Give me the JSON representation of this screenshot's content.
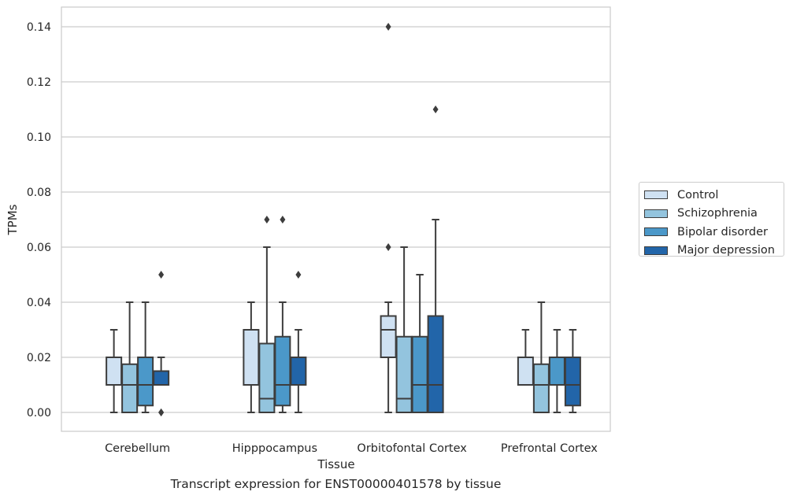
{
  "chart_data": {
    "type": "boxplot",
    "xlabel": "Tissue",
    "ylabel": "TPMs",
    "caption": "Transcript expression for ENST00000401578 by tissue",
    "ylim": [
      -0.007,
      0.147
    ],
    "yticks": [
      "0.00",
      "0.02",
      "0.04",
      "0.06",
      "0.08",
      "0.10",
      "0.12",
      "0.14"
    ],
    "grid": true,
    "legend_placement": "outside-right",
    "categories": [
      "Cerebellum",
      "Hipppocampus",
      "Orbitofontal Cortex",
      "Prefrontal Cortex"
    ],
    "series": [
      {
        "name": "Control",
        "color": "#cfe1f2",
        "boxes": [
          {
            "whislo": 0.0,
            "q1": 0.01,
            "med": 0.01,
            "q3": 0.02,
            "whishi": 0.03,
            "fliers": []
          },
          {
            "whislo": 0.0,
            "q1": 0.01,
            "med": 0.01,
            "q3": 0.03,
            "whishi": 0.04,
            "fliers": []
          },
          {
            "whislo": 0.0,
            "q1": 0.02,
            "med": 0.03,
            "q3": 0.035,
            "whishi": 0.04,
            "fliers": [
              0.06,
              0.14
            ]
          },
          {
            "whislo": 0.01,
            "q1": 0.01,
            "med": 0.01,
            "q3": 0.02,
            "whishi": 0.03,
            "fliers": []
          }
        ]
      },
      {
        "name": "Schizophrenia",
        "color": "#93c4de",
        "boxes": [
          {
            "whislo": 0.0,
            "q1": 0.0,
            "med": 0.01,
            "q3": 0.0175,
            "whishi": 0.04,
            "fliers": []
          },
          {
            "whislo": 0.0,
            "q1": 0.0,
            "med": 0.005,
            "q3": 0.025,
            "whishi": 0.06,
            "fliers": [
              0.07
            ]
          },
          {
            "whislo": 0.0,
            "q1": 0.0,
            "med": 0.005,
            "q3": 0.0275,
            "whishi": 0.06,
            "fliers": []
          },
          {
            "whislo": 0.0,
            "q1": 0.0,
            "med": 0.01,
            "q3": 0.0175,
            "whishi": 0.04,
            "fliers": []
          }
        ]
      },
      {
        "name": "Bipolar disorder",
        "color": "#4b98c9",
        "boxes": [
          {
            "whislo": 0.0,
            "q1": 0.0025,
            "med": 0.01,
            "q3": 0.02,
            "whishi": 0.04,
            "fliers": []
          },
          {
            "whislo": 0.0,
            "q1": 0.0025,
            "med": 0.01,
            "q3": 0.0275,
            "whishi": 0.04,
            "fliers": [
              0.07
            ]
          },
          {
            "whislo": 0.0,
            "q1": 0.0,
            "med": 0.01,
            "q3": 0.0275,
            "whishi": 0.05,
            "fliers": []
          },
          {
            "whislo": 0.0,
            "q1": 0.01,
            "med": 0.01,
            "q3": 0.02,
            "whishi": 0.03,
            "fliers": []
          }
        ]
      },
      {
        "name": "Major depression",
        "color": "#2265a9",
        "boxes": [
          {
            "whislo": 0.01,
            "q1": 0.01,
            "med": 0.01,
            "q3": 0.015,
            "whishi": 0.02,
            "fliers": [
              0.05,
              0.0,
              0.0
            ]
          },
          {
            "whislo": 0.0,
            "q1": 0.01,
            "med": 0.01,
            "q3": 0.02,
            "whishi": 0.03,
            "fliers": [
              0.05
            ]
          },
          {
            "whislo": 0.0,
            "q1": 0.0,
            "med": 0.01,
            "q3": 0.035,
            "whishi": 0.07,
            "fliers": [
              0.11
            ]
          },
          {
            "whislo": 0.0,
            "q1": 0.0025,
            "med": 0.01,
            "q3": 0.02,
            "whishi": 0.03,
            "fliers": []
          }
        ]
      }
    ]
  }
}
